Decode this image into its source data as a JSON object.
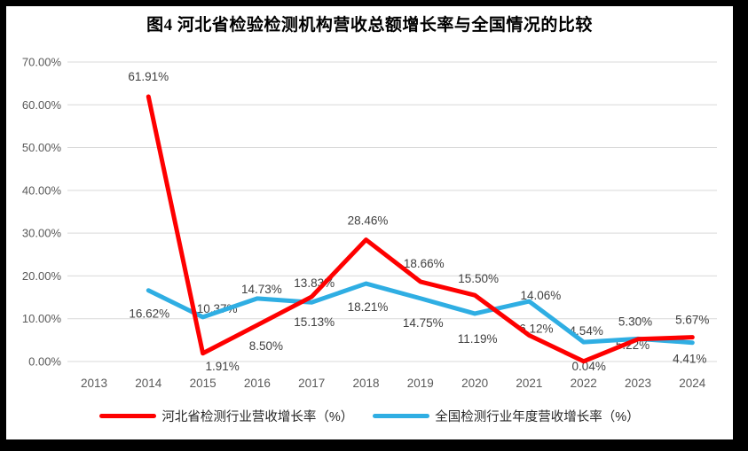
{
  "chart_data": {
    "type": "line",
    "title": "图4 河北省检验检测机构营收总额增长率与全国情况的比较",
    "categories": [
      "2013",
      "2014",
      "2015",
      "2016",
      "2017",
      "2018",
      "2019",
      "2020",
      "2021",
      "2022",
      "2023",
      "2024"
    ],
    "series": [
      {
        "name": "河北省检测行业营收增长率（%）",
        "color": "#FE0000",
        "values": [
          null,
          61.91,
          1.91,
          8.5,
          15.13,
          28.46,
          18.66,
          15.5,
          6.12,
          0.04,
          5.22,
          5.67
        ],
        "labels": [
          null,
          "61.91%",
          "1.91%",
          "8.50%",
          "15.13%",
          "28.46%",
          "18.66%",
          "15.50%",
          "6.12%",
          "0.04%",
          "5.22%",
          "5.67%"
        ]
      },
      {
        "name": "全国检测行业年度营收增长率（%）",
        "color": "#2FAEE3",
        "values": [
          null,
          16.62,
          10.37,
          14.73,
          13.83,
          18.21,
          14.75,
          11.19,
          14.06,
          4.54,
          5.3,
          4.41
        ],
        "labels": [
          null,
          "16.62%",
          "10.37%",
          "14.73%",
          "13.83%",
          "18.21%",
          "14.75%",
          "11.19%",
          "14.06%",
          "4.54%",
          "5.30%",
          "4.41%"
        ]
      }
    ],
    "y_tick_values": [
      0,
      10,
      20,
      30,
      40,
      50,
      60,
      70
    ],
    "y_tick_labels": [
      "0.00%",
      "10.00%",
      "20.00%",
      "30.00%",
      "40.00%",
      "50.00%",
      "60.00%",
      "70.00%"
    ],
    "ylim": [
      0,
      70
    ],
    "grid": "horizontal",
    "legend_position": "bottom",
    "colors": {
      "grid": "#D9D9D9",
      "axis_text": "#595959",
      "data_label_text": "#404040",
      "frame": "#000000",
      "background": "#FFFFFF"
    }
  }
}
